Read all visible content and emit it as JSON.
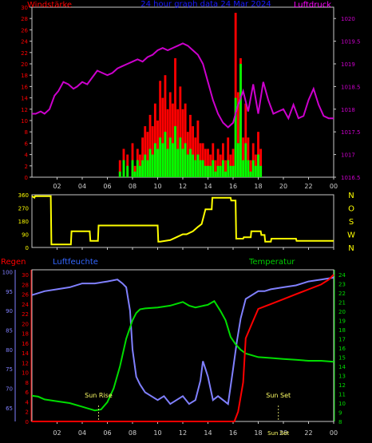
{
  "colors": {
    "background": "#000000",
    "frame": "#c8c8c8",
    "wind": "#ff0000",
    "gust": "#00ff00",
    "pressure": "#cc00cc",
    "direction": "#ffff00",
    "humidity": "#8080ff",
    "temperature": "#00dd00",
    "rain": "#ff0000",
    "grid": "#808080",
    "title": "#1a1aff",
    "label_humidity": "#3366ff",
    "label_temperature": "#00cc00",
    "label_rain": "#ff0000",
    "label_wind": "#ff0000",
    "label_pressure": "#ff00ff",
    "direction_axis": "#ffff00"
  },
  "chart_data": [
    {
      "type": "bar",
      "id": "wind",
      "title": "24 hour graph data  24 Mar 2024",
      "ylabel_left": "Windstärke",
      "ylabel_right": "Luftdruck",
      "x_ticks": [
        "02",
        "04",
        "06",
        "08",
        "10",
        "12",
        "14",
        "16",
        "18",
        "20",
        "22",
        "00"
      ],
      "y_ticks_left": [
        "0",
        "2",
        "4",
        "6",
        "8",
        "10",
        "12",
        "14",
        "16",
        "18",
        "20",
        "22",
        "24",
        "26",
        "28",
        "30"
      ],
      "y_ticks_right": [
        "1016.5",
        "1017",
        "1017.5",
        "1018",
        "1018.5",
        "1019",
        "1019.5",
        "1020"
      ],
      "xlim_hours": [
        0,
        24
      ],
      "ylim_left": [
        0,
        30
      ],
      "ylim_right": [
        1016.5,
        1020.25
      ],
      "series": [
        {
          "name": "Windstärke",
          "color_key": "wind"
        },
        {
          "name": "Luftdruck",
          "color_key": "pressure"
        }
      ],
      "pressure": {
        "x": [
          0,
          0.3,
          0.7,
          1.0,
          1.4,
          1.8,
          2.1,
          2.5,
          2.9,
          3.3,
          3.6,
          4.0,
          4.4,
          4.8,
          5.2,
          5.6,
          6.0,
          6.4,
          6.8,
          7.2,
          7.6,
          8.0,
          8.4,
          8.8,
          9.2,
          9.6,
          10.0,
          10.4,
          10.8,
          11.2,
          11.6,
          12.0,
          12.4,
          12.8,
          13.2,
          13.6,
          14.0,
          14.4,
          14.8,
          15.2,
          15.6,
          16.0,
          16.4,
          16.8,
          17.2,
          17.6,
          18.0,
          18.4,
          18.8,
          19.2,
          19.6,
          20.0,
          20.4,
          20.8,
          21.2,
          21.6,
          22.0,
          22.4,
          22.8,
          23.2,
          23.6,
          24.0
        ],
        "y": [
          1017.9,
          1017.9,
          1017.95,
          1017.9,
          1018.0,
          1018.3,
          1018.4,
          1018.6,
          1018.55,
          1018.45,
          1018.5,
          1018.6,
          1018.55,
          1018.7,
          1018.85,
          1018.8,
          1018.75,
          1018.8,
          1018.9,
          1018.95,
          1019.0,
          1019.05,
          1019.1,
          1019.05,
          1019.15,
          1019.2,
          1019.3,
          1019.35,
          1019.3,
          1019.35,
          1019.4,
          1019.45,
          1019.4,
          1019.3,
          1019.2,
          1019.0,
          1018.6,
          1018.2,
          1017.9,
          1017.7,
          1017.6,
          1017.7,
          1018.1,
          1018.4,
          1017.95,
          1018.55,
          1017.9,
          1018.6,
          1018.2,
          1017.9,
          1017.95,
          1018.0,
          1017.8,
          1018.1,
          1017.8,
          1017.85,
          1018.2,
          1018.45,
          1018.1,
          1017.85,
          1017.8,
          1017.8
        ]
      },
      "wind": {
        "x": [
          7.0,
          7.3,
          7.6,
          8.0,
          8.2,
          8.4,
          8.6,
          8.8,
          9.0,
          9.2,
          9.4,
          9.6,
          9.8,
          10.0,
          10.2,
          10.4,
          10.6,
          10.8,
          11.0,
          11.2,
          11.4,
          11.6,
          11.8,
          12.0,
          12.2,
          12.4,
          12.6,
          12.8,
          13.0,
          13.2,
          13.4,
          13.6,
          13.8,
          14.0,
          14.2,
          14.4,
          14.6,
          14.8,
          15.0,
          15.2,
          15.4,
          15.6,
          15.8,
          16.0,
          16.2,
          16.4,
          16.6,
          16.8,
          17.0,
          17.2,
          17.4,
          17.6,
          17.8,
          18.0,
          18.2
        ],
        "gust": [
          3,
          5,
          4,
          6,
          2,
          5,
          4,
          7,
          9,
          8,
          11,
          9,
          13,
          10,
          17,
          14,
          18,
          12,
          15,
          13,
          21,
          12,
          16,
          12,
          13,
          8,
          11,
          9,
          7,
          10,
          6,
          6,
          5,
          5,
          4,
          6,
          3,
          5,
          4,
          6,
          3,
          7,
          4,
          5,
          29,
          15,
          21,
          7,
          13,
          7,
          3,
          6,
          4,
          8,
          5
        ],
        "mean": [
          1,
          3,
          2,
          3,
          1,
          3,
          2,
          3,
          4,
          3,
          5,
          4,
          6,
          5,
          7,
          6,
          8,
          5,
          7,
          6,
          9,
          5,
          7,
          5,
          6,
          4,
          5,
          4,
          3,
          4,
          3,
          3,
          2,
          2,
          2,
          3,
          1,
          2,
          2,
          3,
          1,
          3,
          2,
          2,
          14,
          6,
          20,
          3,
          6,
          3,
          1,
          3,
          2,
          4,
          2
        ]
      }
    },
    {
      "type": "line",
      "id": "direction",
      "y_ticks_left": [
        "0",
        "90",
        "180",
        "270",
        "360"
      ],
      "y_ticks_right": [
        "N",
        "W",
        "S",
        "O",
        "N"
      ],
      "x_ticks": [
        "02",
        "04",
        "06",
        "08",
        "10",
        "12",
        "14",
        "16",
        "18",
        "20",
        "22",
        "00"
      ],
      "xlim_hours": [
        0,
        24
      ],
      "ylim": [
        0,
        360
      ],
      "series": [
        {
          "color_key": "direction"
        }
      ],
      "x": [
        0,
        0.2,
        0.25,
        1.5,
        1.55,
        3.1,
        3.15,
        4.6,
        4.65,
        5.2,
        5.25,
        5.3,
        8.5,
        8.55,
        10.0,
        10.05,
        10.2,
        11.0,
        11.5,
        12.0,
        12.3,
        12.8,
        13.2,
        13.5,
        13.8,
        14.3,
        14.35,
        15.8,
        15.85,
        16.2,
        16.25,
        16.8,
        16.85,
        17.4,
        17.45,
        18.2,
        18.25,
        18.5,
        18.55,
        19.0,
        19.05,
        21.0,
        21.05,
        24.0
      ],
      "y": [
        350,
        340,
        350,
        350,
        20,
        20,
        110,
        110,
        45,
        45,
        45,
        150,
        150,
        150,
        150,
        40,
        40,
        50,
        70,
        90,
        90,
        110,
        140,
        160,
        260,
        260,
        340,
        340,
        320,
        320,
        60,
        60,
        70,
        70,
        110,
        110,
        85,
        85,
        40,
        40,
        60,
        60,
        45,
        45
      ]
    },
    {
      "type": "line",
      "id": "humidity_temperature",
      "ylabel_left_rain": "Regen",
      "ylabel_left_humidity": "Luftfeuchte",
      "ylabel_right": "Temperatur",
      "annotation_sunrise": "Sun Rise",
      "annotation_sunset": "Sun Set",
      "x_ticks": [
        "02",
        "04",
        "06",
        "08",
        "10",
        "12",
        "14",
        "16",
        "18",
        "20",
        "22",
        "00"
      ],
      "y_ticks_humidity": [
        "65",
        "70",
        "75",
        "80",
        "85",
        "90",
        "95",
        "100"
      ],
      "y_ticks_rain": [
        "0",
        "2",
        "4",
        "6",
        "8",
        "10",
        "12",
        "14",
        "16",
        "18",
        "20",
        "22",
        "24",
        "26",
        "28",
        "30"
      ],
      "y_ticks_temperature": [
        "8",
        "9",
        "10",
        "11",
        "12",
        "13",
        "14",
        "15",
        "16",
        "17",
        "18",
        "19",
        "20",
        "21",
        "22",
        "23",
        "24"
      ],
      "xlim_hours": [
        0,
        24
      ],
      "ylim_humidity": [
        61.5,
        100.5
      ],
      "ylim_temperature": [
        8,
        24.5
      ],
      "series": [
        {
          "name": "Luftfeuchte",
          "color_key": "humidity"
        },
        {
          "name": "Temperatur",
          "color_key": "temperature"
        },
        {
          "name": "Regen",
          "color_key": "rain"
        }
      ],
      "humidity": {
        "x": [
          0,
          1.0,
          2.0,
          3.0,
          4.0,
          5.0,
          6.0,
          6.8,
          7.2,
          7.5,
          7.8,
          8.0,
          8.3,
          8.6,
          9.0,
          9.5,
          10.0,
          10.5,
          11.0,
          11.5,
          12.0,
          12.5,
          13.0,
          13.4,
          13.6,
          13.8,
          14.0,
          14.4,
          14.8,
          15.2,
          15.6,
          16.0,
          16.3,
          16.6,
          17.0,
          17.5,
          18.0,
          18.5,
          19.0,
          20.0,
          21.0,
          22.0,
          23.0,
          24.0
        ],
        "y": [
          94,
          95,
          95.5,
          96,
          97,
          97,
          97.5,
          98,
          97,
          96,
          90,
          80,
          73,
          71,
          69,
          68,
          67,
          68,
          66,
          67,
          68,
          66,
          67,
          72,
          77,
          75,
          73,
          67,
          68,
          67,
          66,
          75,
          82,
          88,
          93,
          94,
          95,
          95,
          95.5,
          96,
          96.5,
          97.5,
          98,
          98.5
        ]
      },
      "temperature": {
        "x": [
          0,
          0.5,
          1.0,
          2.0,
          3.0,
          4.0,
          4.5,
          5.0,
          5.5,
          6.0,
          6.5,
          7.0,
          7.5,
          8.0,
          8.3,
          8.6,
          9.0,
          10.0,
          11.0,
          12.0,
          12.5,
          13.0,
          14.0,
          14.5,
          15.0,
          15.4,
          15.8,
          16.2,
          16.6,
          17.0,
          18.0,
          19.0,
          20.0,
          21.0,
          22.0,
          23.0,
          24.0
        ],
        "y": [
          10.8,
          10.7,
          10.4,
          10.2,
          10.0,
          9.6,
          9.4,
          9.2,
          9.3,
          10.1,
          11.6,
          14.0,
          17.0,
          19.0,
          19.8,
          20.2,
          20.3,
          20.4,
          20.6,
          21.0,
          20.6,
          20.4,
          20.7,
          21.1,
          20.0,
          19.0,
          17.2,
          16.4,
          15.8,
          15.4,
          15.0,
          14.9,
          14.8,
          14.7,
          14.6,
          14.6,
          14.5
        ]
      },
      "rain": {
        "x": [
          0,
          16.1,
          16.4,
          16.8,
          17.0,
          17.5,
          18.0,
          19.0,
          20.0,
          21.0,
          22.0,
          23.0,
          23.6,
          24.0
        ],
        "y": [
          0,
          0,
          2,
          8,
          17,
          20,
          23,
          24,
          25,
          26,
          27,
          28,
          29,
          30
        ]
      },
      "sunrise_hour": 5.3,
      "sunset_hour": 19.6
    }
  ]
}
